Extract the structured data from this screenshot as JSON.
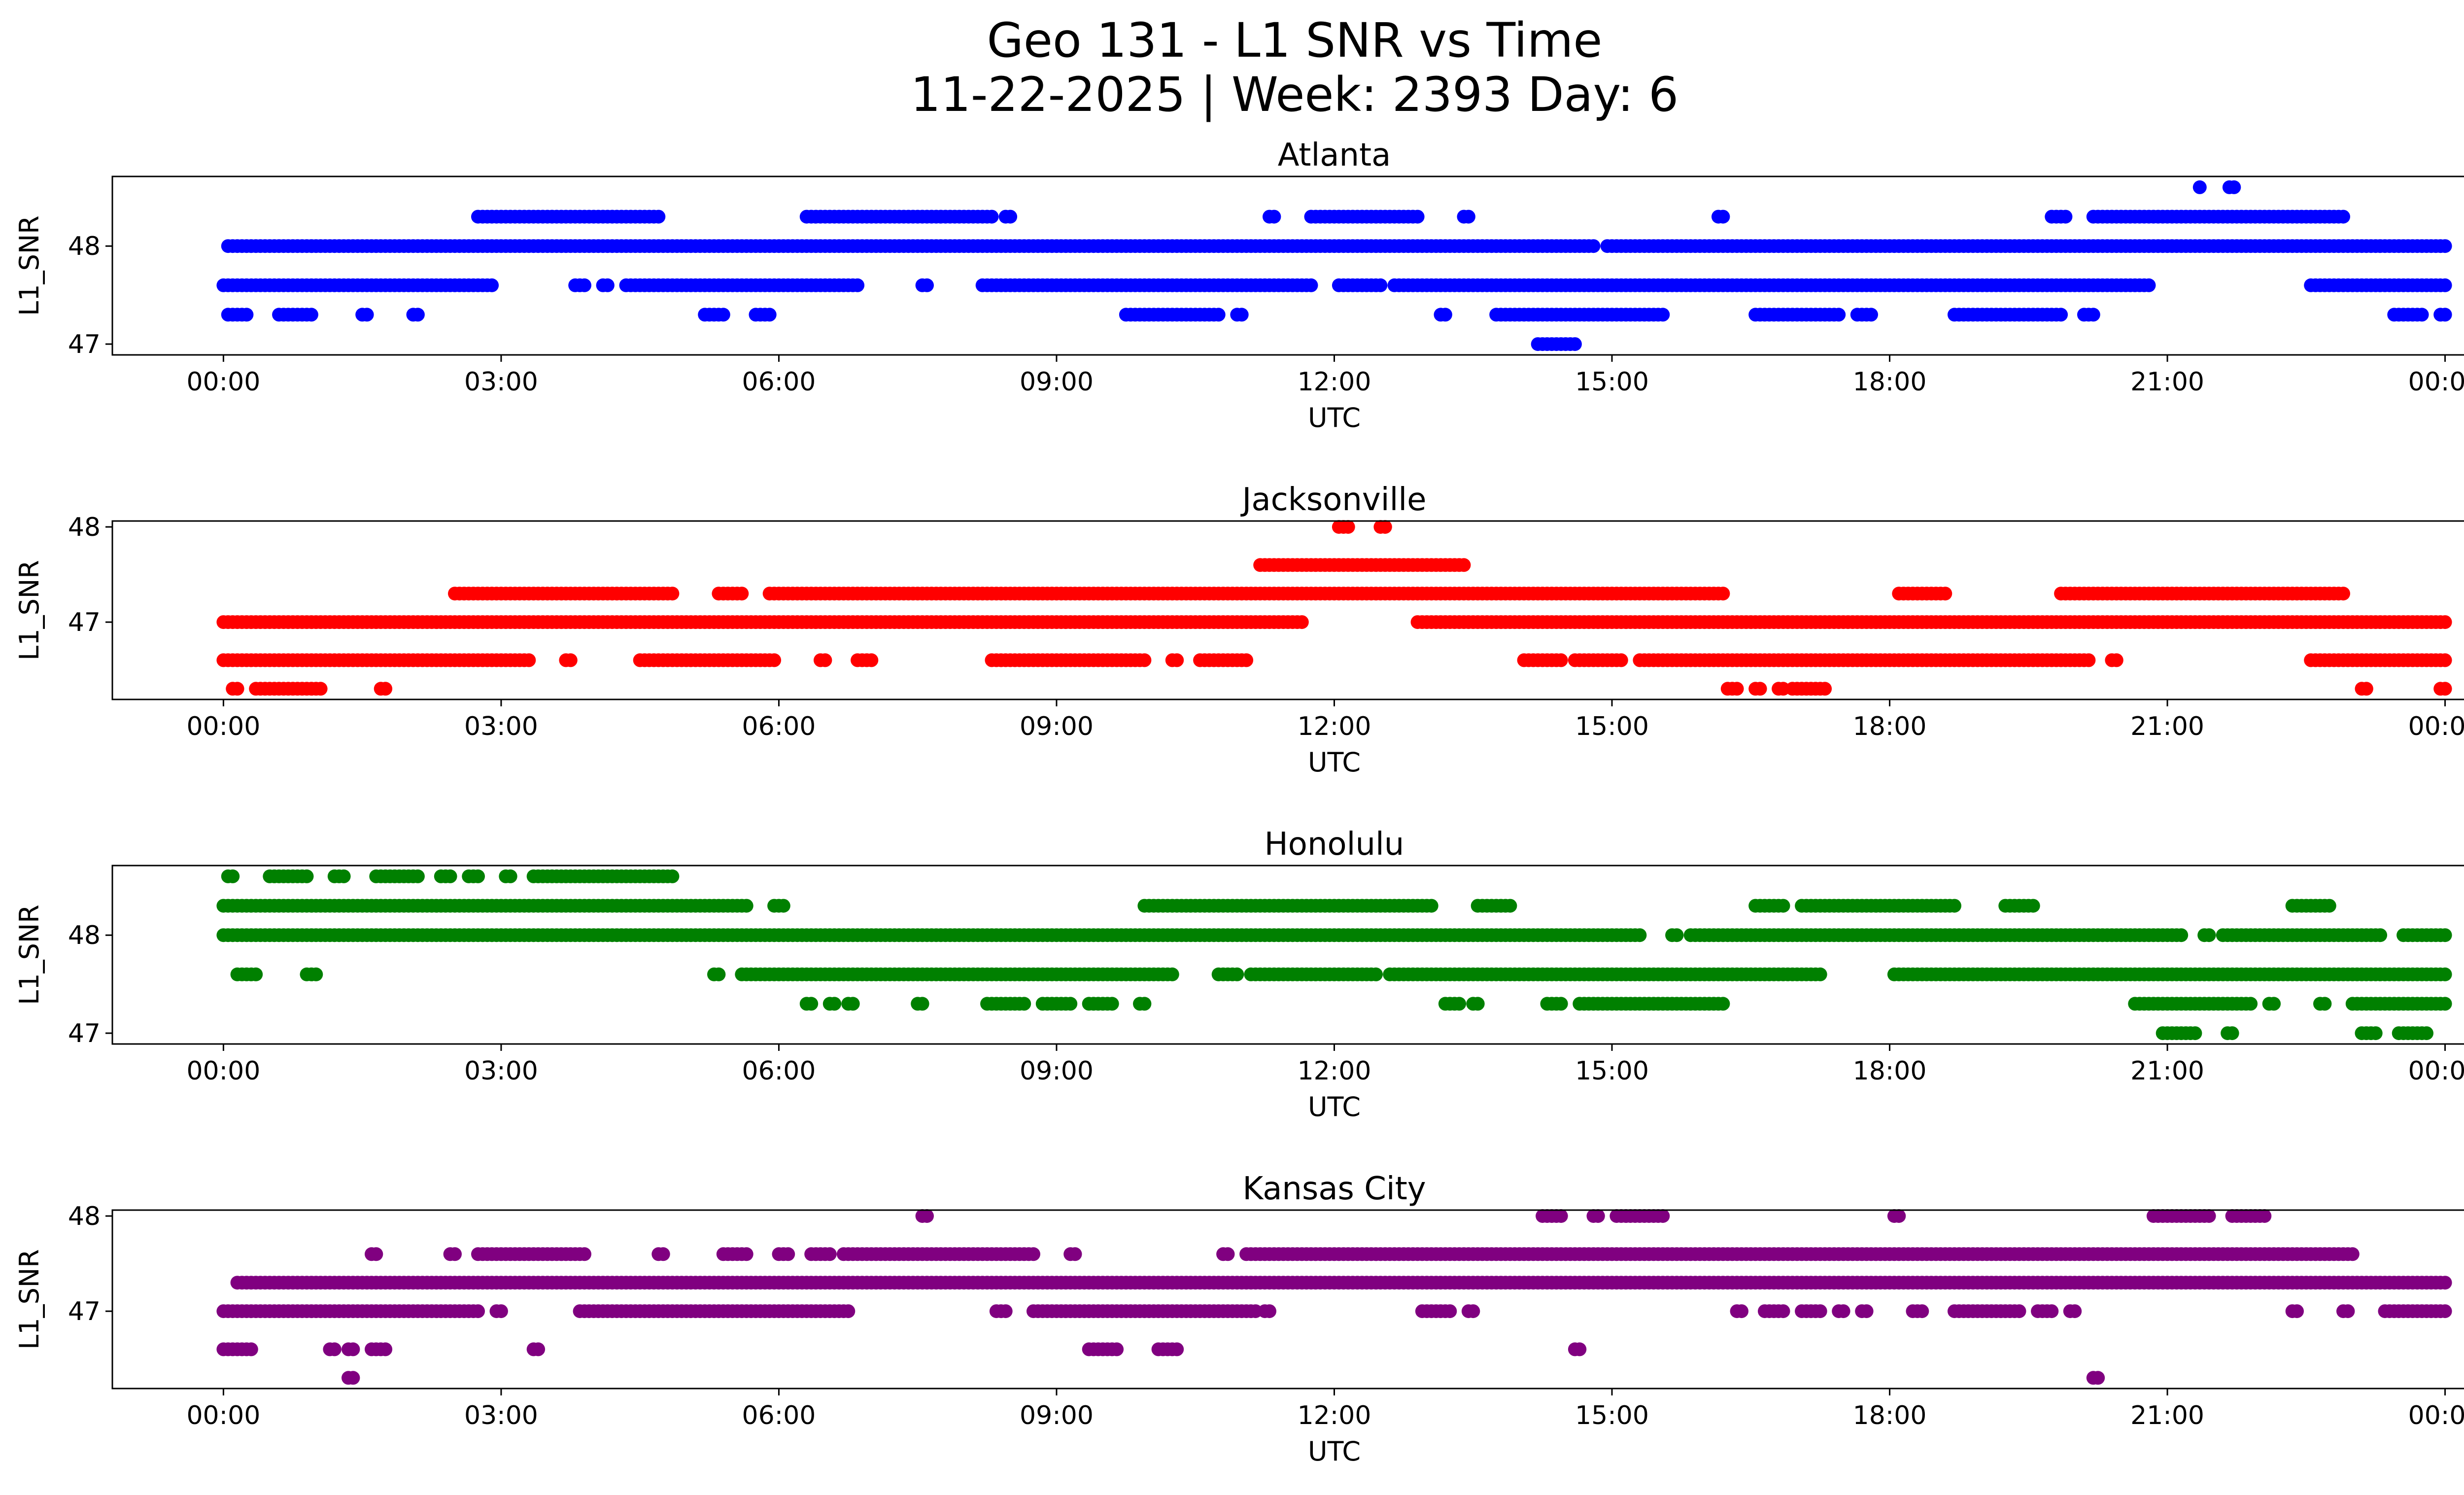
{
  "suptitle_line1": "Geo 131 - L1 SNR vs Time",
  "suptitle_line2": "11-22-2025 | Week: 2393 Day: 6",
  "chart_data": [
    {
      "type": "scatter",
      "title": "Atlanta",
      "xlabel": "UTC",
      "ylabel": "L1_SNR",
      "color": "#0000ff",
      "xlim": [
        0,
        24
      ],
      "ylim": [
        46.95,
        48.65
      ],
      "x_tick_values": [
        0,
        3,
        6,
        9,
        12,
        15,
        18,
        21,
        24
      ],
      "x_tick_labels": [
        "00:00",
        "03:00",
        "06:00",
        "09:00",
        "12:00",
        "15:00",
        "18:00",
        "21:00",
        "00:00"
      ],
      "y_tick_values": [
        47,
        48
      ],
      "y_tick_labels": [
        "47",
        "48"
      ],
      "series": [
        {
          "y": 48.6,
          "segments": [
            [
              21.35,
              21.37
            ],
            [
              21.67,
              21.72
            ]
          ]
        },
        {
          "y": 48.3,
          "segments": [
            [
              2.75,
              4.7
            ],
            [
              6.3,
              8.3
            ],
            [
              8.45,
              8.5
            ],
            [
              11.3,
              11.35
            ],
            [
              11.75,
              12.9
            ],
            [
              13.4,
              13.45
            ],
            [
              16.15,
              16.2
            ],
            [
              19.75,
              19.9
            ],
            [
              20.2,
              22.9
            ]
          ]
        },
        {
          "y": 48.0,
          "segments": [
            [
              0.05,
              14.8
            ],
            [
              14.95,
              24.0
            ]
          ]
        },
        {
          "y": 47.6,
          "segments": [
            [
              0.0,
              2.9
            ],
            [
              3.8,
              3.9
            ],
            [
              4.1,
              4.15
            ],
            [
              4.35,
              6.85
            ],
            [
              7.55,
              7.6
            ],
            [
              8.2,
              11.75
            ],
            [
              12.05,
              12.5
            ],
            [
              12.65,
              20.8
            ],
            [
              22.55,
              24.0
            ]
          ]
        },
        {
          "y": 47.3,
          "segments": [
            [
              0.05,
              0.25
            ],
            [
              0.6,
              0.95
            ],
            [
              1.5,
              1.55
            ],
            [
              2.05,
              2.1
            ],
            [
              5.2,
              5.4
            ],
            [
              5.75,
              5.9
            ],
            [
              9.75,
              10.75
            ],
            [
              10.95,
              11.0
            ],
            [
              13.15,
              13.2
            ],
            [
              13.75,
              15.55
            ],
            [
              16.55,
              17.45
            ],
            [
              17.65,
              17.8
            ],
            [
              18.7,
              19.85
            ],
            [
              20.1,
              20.2
            ],
            [
              23.45,
              23.75
            ],
            [
              23.95,
              24.0
            ]
          ]
        },
        {
          "y": 47.0,
          "segments": [
            [
              14.2,
              14.6
            ]
          ]
        }
      ]
    },
    {
      "type": "scatter",
      "title": "Jacksonville",
      "xlabel": "UTC",
      "ylabel": "L1_SNR",
      "color": "#ff0000",
      "xlim": [
        0,
        24
      ],
      "ylim": [
        46.25,
        48.0
      ],
      "x_tick_values": [
        0,
        3,
        6,
        9,
        12,
        15,
        18,
        21,
        24
      ],
      "x_tick_labels": [
        "00:00",
        "03:00",
        "06:00",
        "09:00",
        "12:00",
        "15:00",
        "18:00",
        "21:00",
        "00:00"
      ],
      "y_tick_values": [
        47,
        48
      ],
      "y_tick_labels": [
        "47",
        "48"
      ],
      "series": [
        {
          "y": 48.0,
          "segments": [
            [
              12.05,
              12.15
            ],
            [
              12.5,
              12.55
            ]
          ]
        },
        {
          "y": 47.6,
          "segments": [
            [
              11.2,
              13.4
            ]
          ]
        },
        {
          "y": 47.3,
          "segments": [
            [
              2.5,
              4.85
            ],
            [
              5.35,
              5.6
            ],
            [
              5.9,
              16.2
            ],
            [
              18.1,
              18.6
            ],
            [
              19.85,
              22.9
            ]
          ]
        },
        {
          "y": 47.0,
          "segments": [
            [
              0.0,
              11.65
            ],
            [
              12.9,
              24.0
            ]
          ]
        },
        {
          "y": 46.6,
          "segments": [
            [
              0.0,
              3.3
            ],
            [
              3.7,
              3.75
            ],
            [
              4.5,
              5.95
            ],
            [
              6.45,
              6.5
            ],
            [
              6.85,
              7.0
            ],
            [
              8.3,
              9.95
            ],
            [
              10.25,
              10.3
            ],
            [
              10.55,
              11.05
            ],
            [
              14.05,
              14.45
            ],
            [
              14.6,
              15.1
            ],
            [
              15.3,
              20.15
            ],
            [
              20.4,
              20.45
            ],
            [
              22.55,
              24.0
            ]
          ]
        },
        {
          "y": 46.3,
          "segments": [
            [
              0.1,
              0.15
            ],
            [
              0.35,
              1.05
            ],
            [
              1.7,
              1.75
            ],
            [
              16.25,
              16.35
            ],
            [
              16.55,
              16.6
            ],
            [
              16.8,
              16.85
            ],
            [
              16.95,
              17.3
            ],
            [
              23.1,
              23.15
            ],
            [
              23.95,
              24.0
            ]
          ]
        }
      ]
    },
    {
      "type": "scatter",
      "title": "Honolulu",
      "xlabel": "UTC",
      "ylabel": "L1_SNR",
      "color": "#008000",
      "xlim": [
        0,
        24
      ],
      "ylim": [
        46.95,
        48.65
      ],
      "x_tick_values": [
        0,
        3,
        6,
        9,
        12,
        15,
        18,
        21,
        24
      ],
      "x_tick_labels": [
        "00:00",
        "03:00",
        "06:00",
        "09:00",
        "12:00",
        "15:00",
        "18:00",
        "21:00",
        "00:00"
      ],
      "y_tick_values": [
        47,
        48
      ],
      "y_tick_labels": [
        "47",
        "48"
      ],
      "series": [
        {
          "y": 48.6,
          "segments": [
            [
              0.05,
              0.1
            ],
            [
              0.5,
              0.9
            ],
            [
              1.2,
              1.3
            ],
            [
              1.65,
              2.1
            ],
            [
              2.35,
              2.45
            ],
            [
              2.65,
              2.75
            ],
            [
              3.05,
              3.1
            ],
            [
              3.35,
              4.85
            ]
          ]
        },
        {
          "y": 48.3,
          "segments": [
            [
              0.0,
              5.65
            ],
            [
              5.95,
              6.05
            ],
            [
              9.95,
              13.05
            ],
            [
              13.55,
              13.9
            ],
            [
              16.55,
              16.85
            ],
            [
              17.05,
              18.6
            ],
            [
              18.65,
              18.7
            ],
            [
              19.25,
              19.55
            ],
            [
              22.35,
              22.75
            ]
          ]
        },
        {
          "y": 48.0,
          "segments": [
            [
              0.0,
              15.3
            ],
            [
              15.65,
              15.7
            ],
            [
              15.85,
              21.15
            ],
            [
              21.4,
              21.45
            ],
            [
              21.6,
              23.3
            ],
            [
              23.55,
              24.0
            ]
          ]
        },
        {
          "y": 47.6,
          "segments": [
            [
              0.15,
              0.35
            ],
            [
              0.9,
              1.0
            ],
            [
              5.3,
              5.35
            ],
            [
              5.6,
              10.25
            ],
            [
              10.75,
              10.95
            ],
            [
              11.1,
              12.45
            ],
            [
              12.6,
              17.25
            ],
            [
              18.05,
              24.0
            ]
          ]
        },
        {
          "y": 47.3,
          "segments": [
            [
              6.3,
              6.35
            ],
            [
              6.55,
              6.6
            ],
            [
              6.75,
              6.8
            ],
            [
              7.5,
              7.55
            ],
            [
              8.25,
              8.65
            ],
            [
              8.85,
              9.15
            ],
            [
              9.35,
              9.6
            ],
            [
              9.9,
              9.95
            ],
            [
              13.2,
              13.35
            ],
            [
              13.5,
              13.55
            ],
            [
              14.3,
              14.45
            ],
            [
              14.65,
              16.2
            ],
            [
              20.65,
              21.9
            ],
            [
              22.1,
              22.15
            ],
            [
              22.65,
              22.7
            ],
            [
              23.0,
              24.0
            ]
          ]
        },
        {
          "y": 47.0,
          "segments": [
            [
              20.95,
              21.3
            ],
            [
              21.65,
              21.7
            ],
            [
              23.1,
              23.25
            ],
            [
              23.5,
              23.8
            ]
          ]
        }
      ]
    },
    {
      "type": "scatter",
      "title": "Kansas City",
      "xlabel": "UTC",
      "ylabel": "L1_SNR",
      "color": "#800080",
      "xlim": [
        0,
        24
      ],
      "ylim": [
        46.25,
        48.0
      ],
      "x_tick_values": [
        0,
        3,
        6,
        9,
        12,
        15,
        18,
        21,
        24
      ],
      "x_tick_labels": [
        "00:00",
        "03:00",
        "06:00",
        "09:00",
        "12:00",
        "15:00",
        "18:00",
        "21:00",
        "00:00"
      ],
      "y_tick_values": [
        47,
        48
      ],
      "y_tick_labels": [
        "47",
        "48"
      ],
      "series": [
        {
          "y": 48.0,
          "segments": [
            [
              7.55,
              7.6
            ],
            [
              14.25,
              14.45
            ],
            [
              14.8,
              14.85
            ],
            [
              15.05,
              15.55
            ],
            [
              18.05,
              18.1
            ],
            [
              20.85,
              21.45
            ],
            [
              21.7,
              22.05
            ]
          ]
        },
        {
          "y": 47.6,
          "segments": [
            [
              1.6,
              1.65
            ],
            [
              2.45,
              2.5
            ],
            [
              2.75,
              3.9
            ],
            [
              4.7,
              4.75
            ],
            [
              5.4,
              5.65
            ],
            [
              6.0,
              6.1
            ],
            [
              6.35,
              6.55
            ],
            [
              6.7,
              8.75
            ],
            [
              9.15,
              9.2
            ],
            [
              10.8,
              10.85
            ],
            [
              11.05,
              23.0
            ]
          ]
        },
        {
          "y": 47.3,
          "segments": [
            [
              0.15,
              24.0
            ]
          ]
        },
        {
          "y": 47.0,
          "segments": [
            [
              0.0,
              2.75
            ],
            [
              2.95,
              3.0
            ],
            [
              3.85,
              6.75
            ],
            [
              8.35,
              8.45
            ],
            [
              8.75,
              11.15
            ],
            [
              11.25,
              11.3
            ],
            [
              12.95,
              13.25
            ],
            [
              13.45,
              13.5
            ],
            [
              16.35,
              16.4
            ],
            [
              16.65,
              16.85
            ],
            [
              17.05,
              17.25
            ],
            [
              17.45,
              17.5
            ],
            [
              17.7,
              17.75
            ],
            [
              18.25,
              18.35
            ],
            [
              18.7,
              19.4
            ],
            [
              19.6,
              19.75
            ],
            [
              19.95,
              20.0
            ],
            [
              22.35,
              22.4
            ],
            [
              22.9,
              22.95
            ],
            [
              23.35,
              24.0
            ]
          ]
        },
        {
          "y": 46.6,
          "segments": [
            [
              0.0,
              0.3
            ],
            [
              1.15,
              1.2
            ],
            [
              1.35,
              1.4
            ],
            [
              1.6,
              1.75
            ],
            [
              3.35,
              3.4
            ],
            [
              9.35,
              9.65
            ],
            [
              10.1,
              10.3
            ],
            [
              14.6,
              14.65
            ]
          ]
        },
        {
          "y": 46.3,
          "segments": [
            [
              1.35,
              1.4
            ],
            [
              20.2,
              20.25
            ]
          ]
        }
      ]
    }
  ]
}
